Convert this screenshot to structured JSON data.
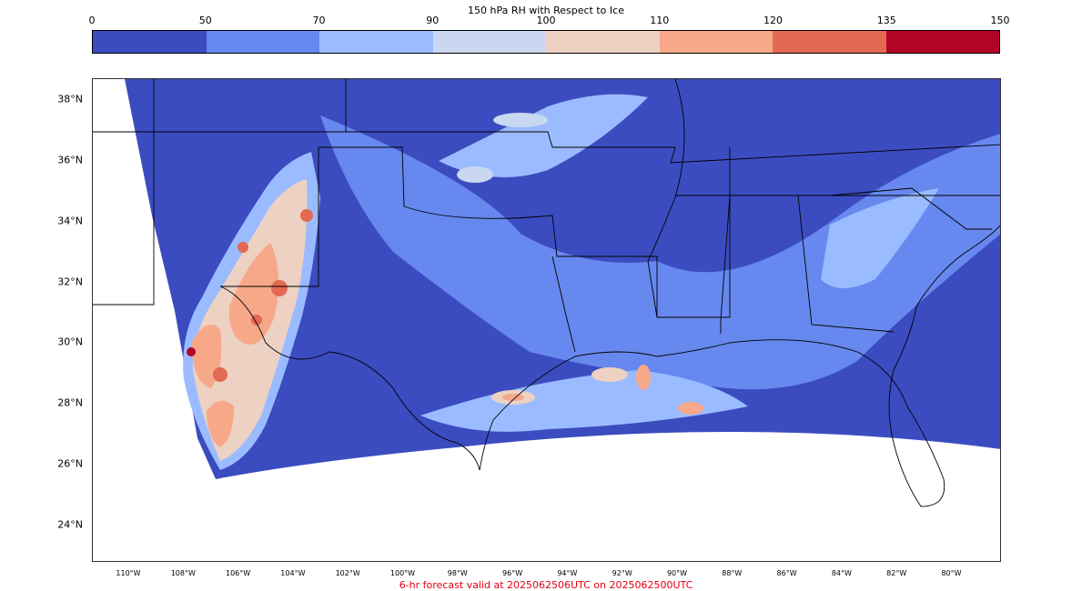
{
  "colorbar": {
    "title": "150 hPa RH with Respect to Ice",
    "ticks": [
      "0",
      "50",
      "70",
      "90",
      "100",
      "110",
      "120",
      "135",
      "150"
    ],
    "colors": [
      "#3b4cc0",
      "#6788ee",
      "#9abbff",
      "#c9d7f0",
      "#edd1c2",
      "#f7a889",
      "#e26952",
      "#b40426"
    ]
  },
  "map": {
    "lat_labels": [
      "38°N",
      "36°N",
      "34°N",
      "32°N",
      "30°N",
      "28°N",
      "26°N",
      "24°N"
    ],
    "lon_labels": [
      "110°W",
      "108°W",
      "106°W",
      "104°W",
      "102°W",
      "100°W",
      "98°W",
      "96°W",
      "94°W",
      "92°W",
      "90°W",
      "88°W",
      "86°W",
      "84°W",
      "82°W",
      "80°W"
    ]
  },
  "caption": "6-hr forecast valid at 2025062506UTC on 2025062500UTC"
}
